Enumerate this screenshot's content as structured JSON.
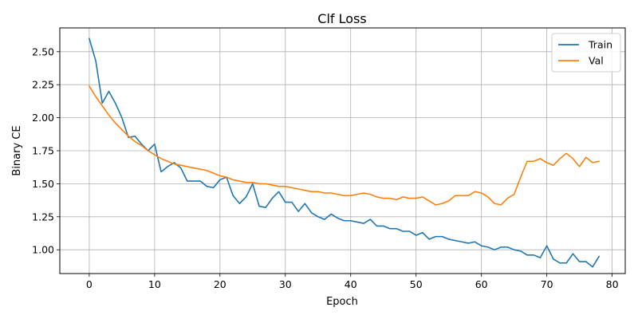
{
  "chart_data": {
    "type": "line",
    "title": "Clf Loss",
    "xlabel": "Epoch",
    "ylabel": "Binary CE",
    "xlim": [
      -4.5,
      82
    ],
    "ylim": [
      0.82,
      2.68
    ],
    "xticks": [
      "0",
      "10",
      "20",
      "30",
      "40",
      "50",
      "60",
      "70",
      "80"
    ],
    "yticks": [
      "1.00",
      "1.25",
      "1.50",
      "1.75",
      "2.00",
      "2.25",
      "2.50"
    ],
    "grid": true,
    "legend_position": "top-right",
    "series": [
      {
        "name": "Train",
        "color": "#1f77b4",
        "values": [
          2.6,
          2.43,
          2.11,
          2.2,
          2.11,
          2.0,
          1.85,
          1.86,
          1.8,
          1.75,
          1.8,
          1.59,
          1.63,
          1.66,
          1.62,
          1.52,
          1.52,
          1.52,
          1.48,
          1.47,
          1.53,
          1.55,
          1.41,
          1.35,
          1.4,
          1.5,
          1.33,
          1.32,
          1.39,
          1.44,
          1.36,
          1.36,
          1.29,
          1.35,
          1.28,
          1.25,
          1.23,
          1.27,
          1.24,
          1.22,
          1.22,
          1.21,
          1.2,
          1.23,
          1.18,
          1.18,
          1.16,
          1.16,
          1.14,
          1.14,
          1.11,
          1.13,
          1.08,
          1.1,
          1.1,
          1.08,
          1.07,
          1.06,
          1.05,
          1.06,
          1.03,
          1.02,
          1.0,
          1.02,
          1.02,
          1.0,
          0.99,
          0.96,
          0.96,
          0.94,
          1.03,
          0.93,
          0.9,
          0.9,
          0.97,
          0.91,
          0.91,
          0.87,
          0.95
        ]
      },
      {
        "name": "Val",
        "color": "#ff7f0e",
        "values": [
          2.24,
          2.16,
          2.09,
          2.02,
          1.96,
          1.91,
          1.86,
          1.82,
          1.79,
          1.75,
          1.72,
          1.69,
          1.67,
          1.65,
          1.64,
          1.63,
          1.62,
          1.61,
          1.6,
          1.58,
          1.56,
          1.55,
          1.53,
          1.52,
          1.51,
          1.51,
          1.5,
          1.5,
          1.49,
          1.48,
          1.48,
          1.47,
          1.46,
          1.45,
          1.44,
          1.44,
          1.43,
          1.43,
          1.42,
          1.41,
          1.41,
          1.42,
          1.43,
          1.42,
          1.4,
          1.39,
          1.39,
          1.38,
          1.4,
          1.39,
          1.39,
          1.4,
          1.37,
          1.34,
          1.35,
          1.37,
          1.41,
          1.41,
          1.41,
          1.44,
          1.43,
          1.4,
          1.35,
          1.34,
          1.39,
          1.42,
          1.55,
          1.67,
          1.67,
          1.69,
          1.66,
          1.64,
          1.69,
          1.73,
          1.69,
          1.63,
          1.7,
          1.66,
          1.67
        ]
      }
    ]
  }
}
